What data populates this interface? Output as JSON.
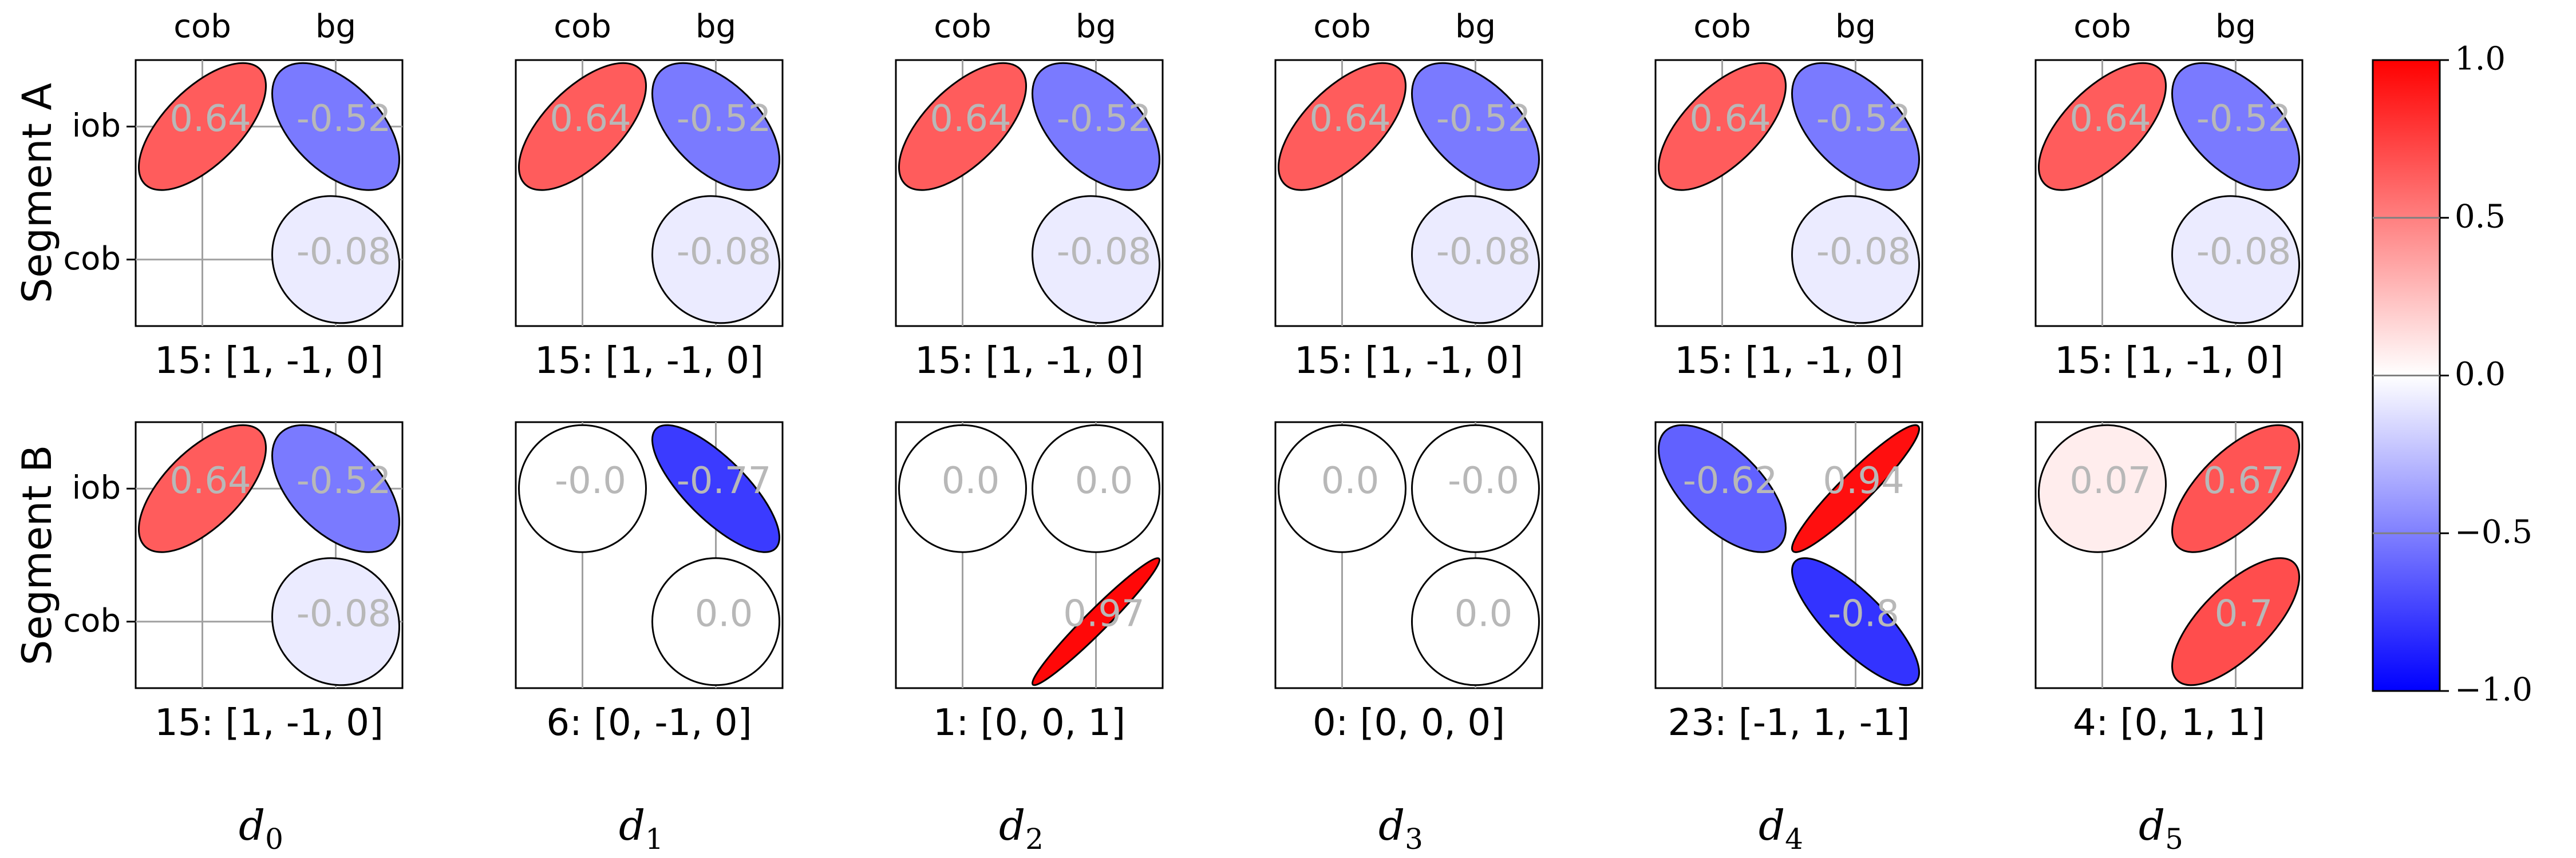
{
  "figure": {
    "row_labels": [
      "Segment A",
      "Segment B"
    ],
    "col_letter": "d",
    "col_subscripts": [
      "0",
      "1",
      "2",
      "3",
      "4",
      "5"
    ]
  },
  "chart_data": {
    "type": "heatmap",
    "matrix_row_labels": [
      "iob",
      "cob"
    ],
    "matrix_col_labels": [
      "cob",
      "bg"
    ],
    "color_scale": {
      "min": -1.0,
      "max": 1.0,
      "low": "#0000ff",
      "mid": "#ffffff",
      "high": "#ff0000"
    },
    "colorbar_ticks": [
      "−1.0",
      "−0.5",
      "0.0",
      "0.5",
      "1.0"
    ],
    "panels": [
      {
        "id": "A-d0",
        "row": 0,
        "col": 0,
        "caption": "15: [1, -1, 0]",
        "show_col_labels": true,
        "show_row_ticks": true,
        "cells": [
          {
            "r": 0,
            "c": 0,
            "value": 0.64,
            "label": "0.64"
          },
          {
            "r": 0,
            "c": 1,
            "value": -0.52,
            "label": "-0.52"
          },
          {
            "r": 1,
            "c": 1,
            "value": -0.08,
            "label": "-0.08"
          }
        ]
      },
      {
        "id": "A-d1",
        "row": 0,
        "col": 1,
        "caption": "15: [1, -1, 0]",
        "show_col_labels": true,
        "show_row_ticks": false,
        "cells": [
          {
            "r": 0,
            "c": 0,
            "value": 0.64,
            "label": "0.64"
          },
          {
            "r": 0,
            "c": 1,
            "value": -0.52,
            "label": "-0.52"
          },
          {
            "r": 1,
            "c": 1,
            "value": -0.08,
            "label": "-0.08"
          }
        ]
      },
      {
        "id": "A-d2",
        "row": 0,
        "col": 2,
        "caption": "15: [1, -1, 0]",
        "show_col_labels": true,
        "show_row_ticks": false,
        "cells": [
          {
            "r": 0,
            "c": 0,
            "value": 0.64,
            "label": "0.64"
          },
          {
            "r": 0,
            "c": 1,
            "value": -0.52,
            "label": "-0.52"
          },
          {
            "r": 1,
            "c": 1,
            "value": -0.08,
            "label": "-0.08"
          }
        ]
      },
      {
        "id": "A-d3",
        "row": 0,
        "col": 3,
        "caption": "15: [1, -1, 0]",
        "show_col_labels": true,
        "show_row_ticks": false,
        "cells": [
          {
            "r": 0,
            "c": 0,
            "value": 0.64,
            "label": "0.64"
          },
          {
            "r": 0,
            "c": 1,
            "value": -0.52,
            "label": "-0.52"
          },
          {
            "r": 1,
            "c": 1,
            "value": -0.08,
            "label": "-0.08"
          }
        ]
      },
      {
        "id": "A-d4",
        "row": 0,
        "col": 4,
        "caption": "15: [1, -1, 0]",
        "show_col_labels": true,
        "show_row_ticks": false,
        "cells": [
          {
            "r": 0,
            "c": 0,
            "value": 0.64,
            "label": "0.64"
          },
          {
            "r": 0,
            "c": 1,
            "value": -0.52,
            "label": "-0.52"
          },
          {
            "r": 1,
            "c": 1,
            "value": -0.08,
            "label": "-0.08"
          }
        ]
      },
      {
        "id": "A-d5",
        "row": 0,
        "col": 5,
        "caption": "15: [1, -1, 0]",
        "show_col_labels": true,
        "show_row_ticks": false,
        "cells": [
          {
            "r": 0,
            "c": 0,
            "value": 0.64,
            "label": "0.64"
          },
          {
            "r": 0,
            "c": 1,
            "value": -0.52,
            "label": "-0.52"
          },
          {
            "r": 1,
            "c": 1,
            "value": -0.08,
            "label": "-0.08"
          }
        ]
      },
      {
        "id": "B-d0",
        "row": 1,
        "col": 0,
        "caption": "15: [1, -1, 0]",
        "show_col_labels": false,
        "show_row_ticks": true,
        "cells": [
          {
            "r": 0,
            "c": 0,
            "value": 0.64,
            "label": "0.64"
          },
          {
            "r": 0,
            "c": 1,
            "value": -0.52,
            "label": "-0.52"
          },
          {
            "r": 1,
            "c": 1,
            "value": -0.08,
            "label": "-0.08"
          }
        ]
      },
      {
        "id": "B-d1",
        "row": 1,
        "col": 1,
        "caption": "6: [0, -1, 0]",
        "show_col_labels": false,
        "show_row_ticks": false,
        "cells": [
          {
            "r": 0,
            "c": 0,
            "value": -0.0,
            "label": "-0.0"
          },
          {
            "r": 0,
            "c": 1,
            "value": -0.77,
            "label": "-0.77"
          },
          {
            "r": 1,
            "c": 1,
            "value": 0.0,
            "label": "0.0"
          }
        ]
      },
      {
        "id": "B-d2",
        "row": 1,
        "col": 2,
        "caption": "1: [0, 0, 1]",
        "show_col_labels": false,
        "show_row_ticks": false,
        "cells": [
          {
            "r": 0,
            "c": 0,
            "value": 0.0,
            "label": "0.0"
          },
          {
            "r": 0,
            "c": 1,
            "value": 0.0,
            "label": "0.0"
          },
          {
            "r": 1,
            "c": 1,
            "value": 0.97,
            "label": "0.97"
          }
        ]
      },
      {
        "id": "B-d3",
        "row": 1,
        "col": 3,
        "caption": "0: [0, 0, 0]",
        "show_col_labels": false,
        "show_row_ticks": false,
        "cells": [
          {
            "r": 0,
            "c": 0,
            "value": 0.0,
            "label": "0.0"
          },
          {
            "r": 0,
            "c": 1,
            "value": -0.0,
            "label": "-0.0"
          },
          {
            "r": 1,
            "c": 1,
            "value": 0.0,
            "label": "0.0"
          }
        ]
      },
      {
        "id": "B-d4",
        "row": 1,
        "col": 4,
        "caption": "23: [-1, 1, -1]",
        "show_col_labels": false,
        "show_row_ticks": false,
        "cells": [
          {
            "r": 0,
            "c": 0,
            "value": -0.62,
            "label": "-0.62"
          },
          {
            "r": 0,
            "c": 1,
            "value": 0.94,
            "label": "0.94"
          },
          {
            "r": 1,
            "c": 1,
            "value": -0.8,
            "label": "-0.8"
          }
        ]
      },
      {
        "id": "B-d5",
        "row": 1,
        "col": 5,
        "caption": "4: [0, 1, 1]",
        "show_col_labels": false,
        "show_row_ticks": false,
        "cells": [
          {
            "r": 0,
            "c": 0,
            "value": 0.07,
            "label": "0.07"
          },
          {
            "r": 0,
            "c": 1,
            "value": 0.67,
            "label": "0.67"
          },
          {
            "r": 1,
            "c": 1,
            "value": 0.7,
            "label": "0.7"
          }
        ]
      }
    ]
  }
}
